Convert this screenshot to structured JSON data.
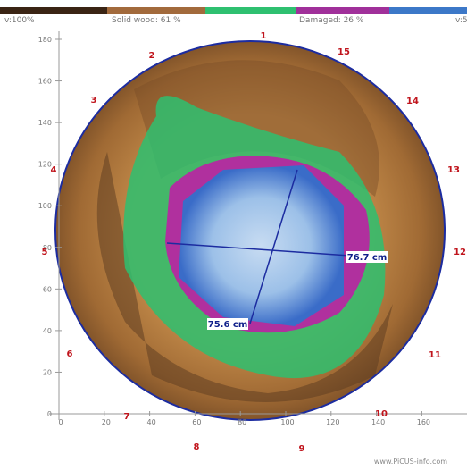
{
  "legend": {
    "items": [
      "v:100%",
      "Solid wood: 61 %",
      "Damaged: 26 %",
      "v:5"
    ]
  },
  "axes": {
    "xlim": [
      0,
      180
    ],
    "xticks": [
      0,
      20,
      40,
      60,
      80,
      100,
      120,
      140,
      160
    ],
    "ylim": [
      0,
      180
    ],
    "yticks": [
      0,
      20,
      40,
      60,
      80,
      100,
      120,
      140,
      160,
      180
    ]
  },
  "sensors": [
    "1",
    "2",
    "3",
    "4",
    "5",
    "6",
    "7",
    "8",
    "9",
    "10",
    "11",
    "12",
    "13",
    "14",
    "15"
  ],
  "measurements": [
    "76.7 cm",
    "75.6 cm"
  ],
  "watermark": "www.PiCUS-info.com"
}
